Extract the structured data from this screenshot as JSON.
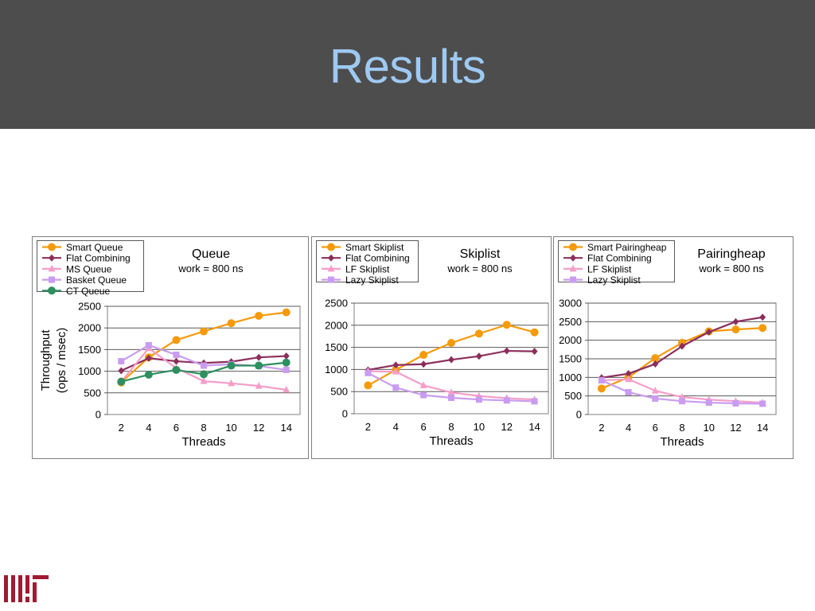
{
  "slide": {
    "title": "Results"
  },
  "colors": {
    "orange": "#f59a0a",
    "purple": "#8b2e5c",
    "pink": "#f59dc9",
    "lavender": "#c99cf0",
    "green": "#2e8f60",
    "title": "#9ec9f2",
    "logo_red": "#9e1b32"
  },
  "logo": {
    "name": "mit-logo"
  },
  "chart_data": [
    {
      "type": "line",
      "title": "Queue",
      "subtitle": "work = 800 ns",
      "xlabel": "Threads",
      "ylabel": "Throughput (ops / msec)",
      "ylabel_lines": [
        "Throughput",
        "(ops / msec)"
      ],
      "x": [
        2,
        4,
        6,
        8,
        10,
        12,
        14
      ],
      "xlim": [
        1,
        15
      ],
      "ylim": [
        0,
        2500
      ],
      "yticks": [
        0,
        500,
        1000,
        1500,
        2000,
        2500
      ],
      "grid": true,
      "legend_position": "top-left",
      "series": [
        {
          "name": "Smart Queue",
          "marker": "circle",
          "color": "#f59a0a",
          "values": [
            740,
            1320,
            1720,
            1920,
            2110,
            2280,
            2360
          ]
        },
        {
          "name": "Flat Combining",
          "marker": "diamond",
          "color": "#8b2e5c",
          "values": [
            1010,
            1300,
            1230,
            1190,
            1220,
            1320,
            1350
          ]
        },
        {
          "name": "MS Queue",
          "marker": "triangle",
          "color": "#f59dc9",
          "values": [
            760,
            1530,
            1070,
            770,
            720,
            660,
            570
          ]
        },
        {
          "name": "Basket Queue",
          "marker": "square",
          "color": "#c99cf0",
          "values": [
            1230,
            1600,
            1380,
            1130,
            1160,
            1120,
            1030
          ]
        },
        {
          "name": "CT Queue",
          "marker": "circle",
          "color": "#2e8f60",
          "values": [
            760,
            920,
            1030,
            930,
            1130,
            1130,
            1200
          ]
        }
      ]
    },
    {
      "type": "line",
      "title": "Skiplist",
      "subtitle": "work = 800 ns",
      "xlabel": "Threads",
      "ylabel": "",
      "x": [
        2,
        4,
        6,
        8,
        10,
        12,
        14
      ],
      "xlim": [
        1,
        15
      ],
      "ylim": [
        0,
        2500
      ],
      "yticks": [
        0,
        500,
        1000,
        1500,
        2000,
        2500
      ],
      "grid": true,
      "legend_position": "top-left",
      "series": [
        {
          "name": "Smart Skiplist",
          "marker": "circle",
          "color": "#f59a0a",
          "values": [
            640,
            990,
            1330,
            1600,
            1810,
            2010,
            1840
          ]
        },
        {
          "name": "Flat Combining",
          "marker": "diamond",
          "color": "#8b2e5c",
          "values": [
            990,
            1100,
            1120,
            1220,
            1300,
            1420,
            1410
          ]
        },
        {
          "name": "LF Skiplist",
          "marker": "triangle",
          "color": "#f59dc9",
          "values": [
            960,
            950,
            640,
            480,
            400,
            350,
            320
          ]
        },
        {
          "name": "Lazy Skiplist",
          "marker": "square",
          "color": "#c99cf0",
          "values": [
            920,
            590,
            420,
            360,
            320,
            300,
            280
          ]
        }
      ]
    },
    {
      "type": "line",
      "title": "Pairingheap",
      "subtitle": "work = 800 ns",
      "xlabel": "Threads",
      "ylabel": "",
      "x": [
        2,
        4,
        6,
        8,
        10,
        12,
        14
      ],
      "xlim": [
        1,
        15
      ],
      "ylim": [
        0,
        3000
      ],
      "yticks": [
        0,
        500,
        1000,
        1500,
        2000,
        2500,
        3000
      ],
      "grid": true,
      "legend_position": "top-left",
      "series": [
        {
          "name": "Smart Pairingheap",
          "marker": "circle",
          "color": "#f59a0a",
          "values": [
            700,
            1000,
            1520,
            1930,
            2240,
            2290,
            2330
          ]
        },
        {
          "name": "Flat Combining",
          "marker": "diamond",
          "color": "#8b2e5c",
          "values": [
            990,
            1100,
            1360,
            1840,
            2220,
            2500,
            2620
          ]
        },
        {
          "name": "LF Skiplist",
          "marker": "triangle",
          "color": "#f59dc9",
          "values": [
            920,
            950,
            640,
            470,
            400,
            360,
            320
          ]
        },
        {
          "name": "Lazy Skiplist",
          "marker": "square",
          "color": "#c99cf0",
          "values": [
            920,
            600,
            430,
            360,
            320,
            300,
            290
          ]
        }
      ]
    }
  ]
}
